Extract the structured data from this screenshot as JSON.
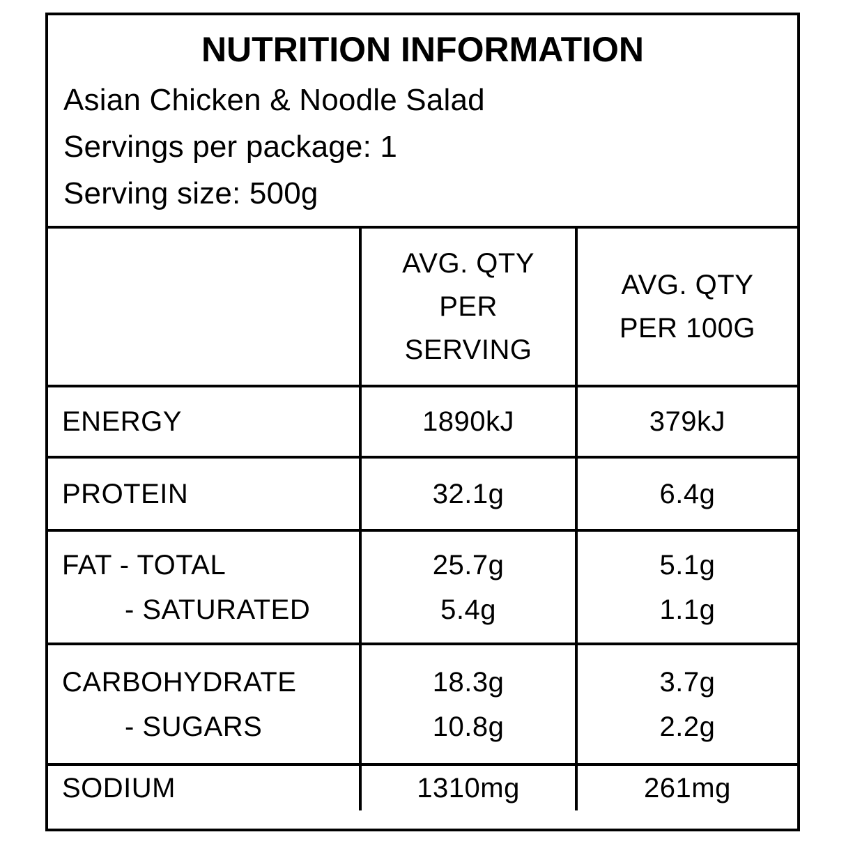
{
  "label": {
    "title": "NUTRITION INFORMATION",
    "product_name": "Asian Chicken & Noodle Salad",
    "servings_per_package": "Servings per package: 1",
    "serving_size": "Serving size: 500g"
  },
  "table": {
    "columns": {
      "per_serving_lines": [
        "AVG. QTY",
        "PER",
        "SERVING"
      ],
      "per_100g_lines": [
        "AVG. QTY",
        "PER 100G"
      ]
    },
    "rows": [
      {
        "labels": [
          "ENERGY"
        ],
        "per_serving": [
          "1890kJ"
        ],
        "per_100g": [
          "379kJ"
        ]
      },
      {
        "labels": [
          "PROTEIN"
        ],
        "per_serving": [
          "32.1g"
        ],
        "per_100g": [
          "6.4g"
        ]
      },
      {
        "labels": [
          "FAT - TOTAL",
          "- SATURATED"
        ],
        "per_serving": [
          "25.7g",
          "5.4g"
        ],
        "per_100g": [
          "5.1g",
          "1.1g"
        ]
      },
      {
        "labels": [
          "CARBOHYDRATE",
          "- SUGARS"
        ],
        "per_serving": [
          "18.3g",
          "10.8g"
        ],
        "per_100g": [
          "3.7g",
          "2.2g"
        ]
      },
      {
        "labels": [
          "SODIUM"
        ],
        "per_serving": [
          "1310mg"
        ],
        "per_100g": [
          "261mg"
        ]
      }
    ]
  },
  "colors": {
    "ink": "#000000",
    "background": "#ffffff"
  }
}
